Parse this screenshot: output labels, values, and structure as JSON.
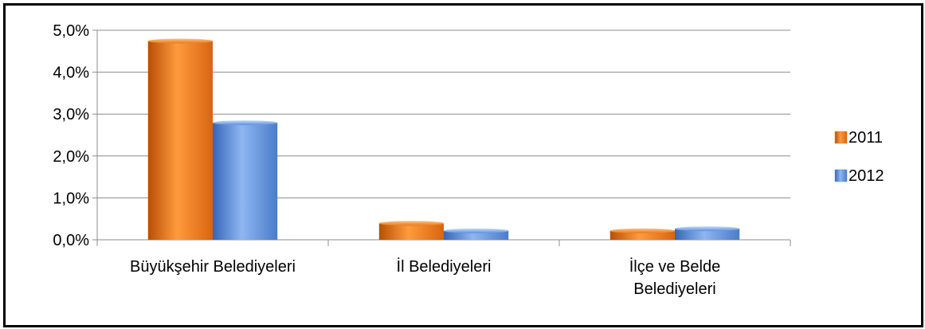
{
  "chart_data": {
    "type": "bar",
    "categories": [
      [
        "Büyükşehir Belediyeleri"
      ],
      [
        "İl Belediyeleri"
      ],
      [
        "İlçe ve Belde",
        "Belediyeleri"
      ]
    ],
    "series": [
      {
        "name": "2011",
        "values": [
          4.8,
          0.45,
          0.27
        ],
        "color": "#f07b17"
      },
      {
        "name": "2012",
        "values": [
          2.85,
          0.27,
          0.32
        ],
        "color": "#5b8fd9"
      }
    ],
    "yticks": [
      "0,0%",
      "1,0%",
      "2,0%",
      "3,0%",
      "4,0%",
      "5,0%"
    ],
    "ylim": [
      0,
      5
    ],
    "grid": true,
    "legend_position": "right"
  }
}
